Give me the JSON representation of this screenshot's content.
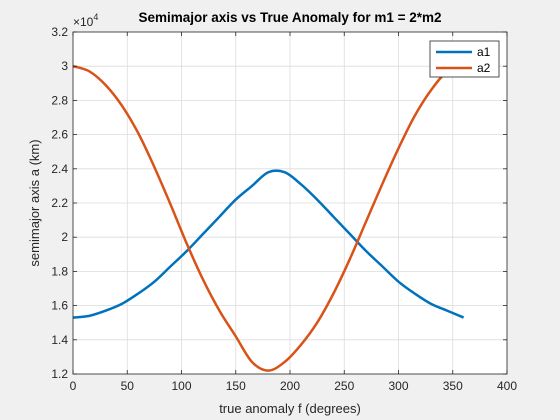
{
  "chart_data": {
    "type": "line",
    "title": "Semimajor axis vs True Anomaly for m1 = 2*m2",
    "xlabel": "true anomaly f (degrees)",
    "ylabel": "semimajor axis a (km)",
    "xlim": [
      0,
      400
    ],
    "ylim": [
      12000,
      32000
    ],
    "xticks": [
      0,
      50,
      100,
      150,
      200,
      250,
      300,
      350,
      400
    ],
    "xtick_labels": [
      "0",
      "50",
      "100",
      "150",
      "200",
      "250",
      "300",
      "350",
      "400"
    ],
    "yticks": [
      12000,
      14000,
      16000,
      18000,
      20000,
      22000,
      24000,
      26000,
      28000,
      30000,
      32000
    ],
    "ytick_labels": [
      "1.2",
      "1.4",
      "1.6",
      "1.8",
      "2",
      "2.2",
      "2.4",
      "2.6",
      "2.8",
      "3",
      "3.2"
    ],
    "exponent_label": "×10",
    "exponent_power": "4",
    "grid": true,
    "legend_position": "top-right",
    "x": [
      0,
      15,
      30,
      45,
      60,
      75,
      90,
      105,
      120,
      135,
      150,
      165,
      180,
      195,
      210,
      225,
      240,
      255,
      270,
      285,
      300,
      315,
      330,
      345,
      360
    ],
    "series": [
      {
        "name": "a1",
        "color": "#0072bd",
        "values": [
          15300,
          15400,
          15700,
          16100,
          16700,
          17400,
          18300,
          19200,
          20200,
          21200,
          22200,
          23000,
          23800,
          23800,
          23100,
          22200,
          21200,
          20200,
          19200,
          18300,
          17400,
          16700,
          16100,
          15700,
          15300
        ]
      },
      {
        "name": "a2",
        "color": "#d95319",
        "values": [
          30000,
          29700,
          28900,
          27700,
          26100,
          24100,
          21900,
          19600,
          17500,
          15700,
          14200,
          12700,
          12200,
          12700,
          13700,
          15000,
          16700,
          18700,
          20900,
          23100,
          25200,
          27100,
          28600,
          29700,
          30000
        ]
      }
    ]
  }
}
